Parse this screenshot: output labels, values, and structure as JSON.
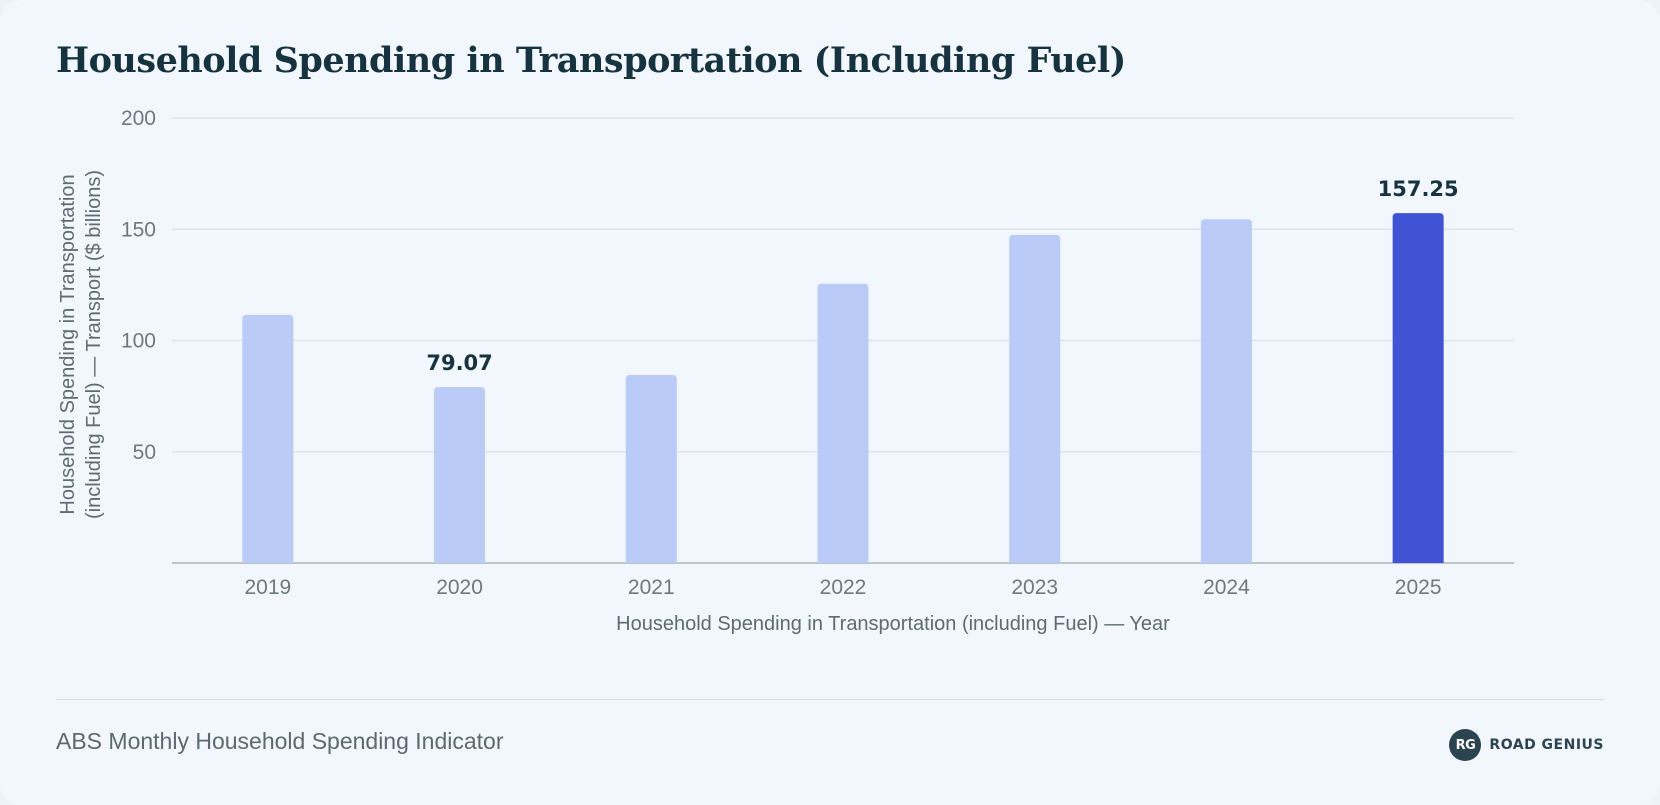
{
  "title": "Household Spending in Transportation (Including Fuel)",
  "source": "ABS Monthly Household Spending Indicator",
  "brand": {
    "logo_text": "RG",
    "name": "ROAD GENIUS"
  },
  "colors": {
    "bar": "#b9cbf6",
    "highlight": "#3f53d4",
    "grid": "#dde5ec",
    "axis": "#a9b3bb"
  },
  "chart_data": {
    "type": "bar",
    "title": "Household Spending in Transportation (Including Fuel)",
    "xlabel": "Household Spending in Transportation (including Fuel) — Year",
    "ylabel_lines": [
      "Household Spending in Transportation",
      "(including Fuel) — Transport ($ billions)"
    ],
    "categories": [
      "2019",
      "2020",
      "2021",
      "2022",
      "2023",
      "2024",
      "2025"
    ],
    "values": [
      111.5,
      79.07,
      84.5,
      125.5,
      147.5,
      154.5,
      157.25
    ],
    "highlight_index": 6,
    "data_labels": [
      {
        "index": 1,
        "text": "79.07"
      },
      {
        "index": 6,
        "text": "157.25"
      }
    ],
    "ylim": [
      0,
      200
    ],
    "yticks": [
      50,
      100,
      150,
      200
    ],
    "grid": true,
    "legend": "none"
  }
}
